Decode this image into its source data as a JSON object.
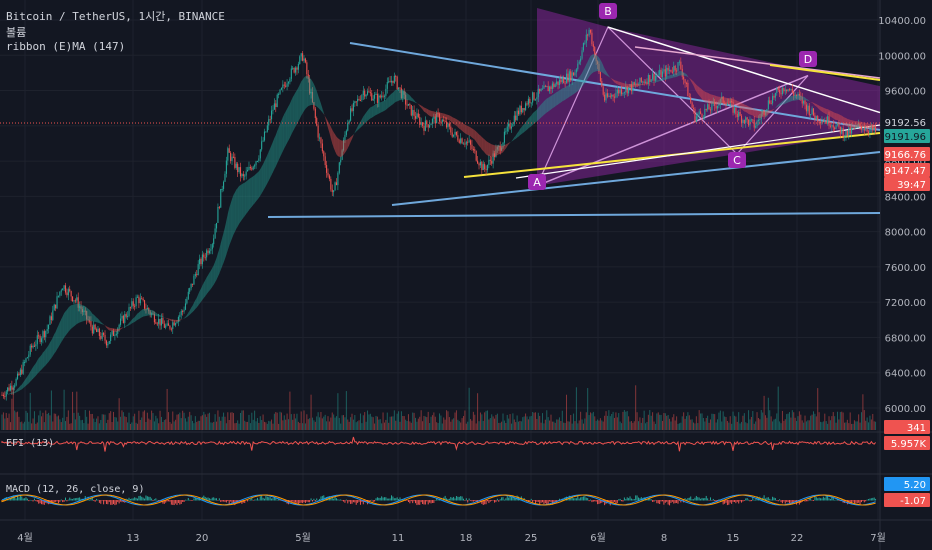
{
  "header": {
    "symbol": "Bitcoin / TetherUS, 1시간, BINANCE",
    "volume_label": "볼륨",
    "ribbon_label": "ribbon (E)MA (147)"
  },
  "chart_data": {
    "type": "candlestick",
    "ylim": [
      5600,
      10600
    ],
    "y_ticks": [
      6000,
      6400,
      6800,
      7200,
      7600,
      8000,
      8400,
      8800,
      9200,
      9600,
      10000,
      10400
    ],
    "x_ticks": [
      "4월",
      "13",
      "20",
      "5월",
      "11",
      "18",
      "25",
      "6월",
      "8",
      "15",
      "22",
      "7월"
    ],
    "price_path": [
      6150,
      6320,
      6700,
      6900,
      7400,
      7200,
      6900,
      6750,
      7000,
      7250,
      7050,
      6900,
      7100,
      7600,
      7900,
      8900,
      8600,
      8850,
      9400,
      9750,
      10000,
      9100,
      8400,
      9300,
      9600,
      9500,
      9750,
      9400,
      9200,
      9300,
      9100,
      9000,
      8700,
      8950,
      9300,
      9500,
      9600,
      9700,
      9800,
      10300,
      9500,
      9600,
      9650,
      9750,
      9800,
      9900,
      9300,
      9400,
      9500,
      9300,
      9200,
      9500,
      9650,
      9500,
      9300,
      9250,
      9100,
      9200,
      9130
    ],
    "price_labels": [
      {
        "text": "9192.56",
        "color": "#d1d4dc",
        "bg": "#131722"
      },
      {
        "text": "9191.96",
        "color": "#131722",
        "bg": "#26a69a"
      },
      {
        "text": "9166.76",
        "color": "#ffffff",
        "bg": "#ef5350"
      },
      {
        "text": "9147.47",
        "color": "#ffffff",
        "bg": "#ef5350"
      },
      {
        "text": "39:47",
        "color": "#ffffff",
        "bg": "#ef5350"
      },
      {
        "text": "341",
        "color": "#ffffff",
        "bg": "#ef5350"
      }
    ],
    "pattern_points": [
      "A",
      "B",
      "C",
      "D"
    ],
    "indicators": [
      {
        "name": "EFI (13)",
        "value": "5.957K",
        "color": "#ef5350"
      },
      {
        "name": "MACD (12, 26, close, 9)",
        "values": [
          "5.20",
          "-1.07"
        ],
        "colors": [
          "#2196f3",
          "#ef5350"
        ]
      }
    ],
    "colors": {
      "up": "#26a69a",
      "down": "#ef5350",
      "trend": "#6fa8dc",
      "yellow": "#f6e33c",
      "pattern": "#9c27b0"
    }
  }
}
